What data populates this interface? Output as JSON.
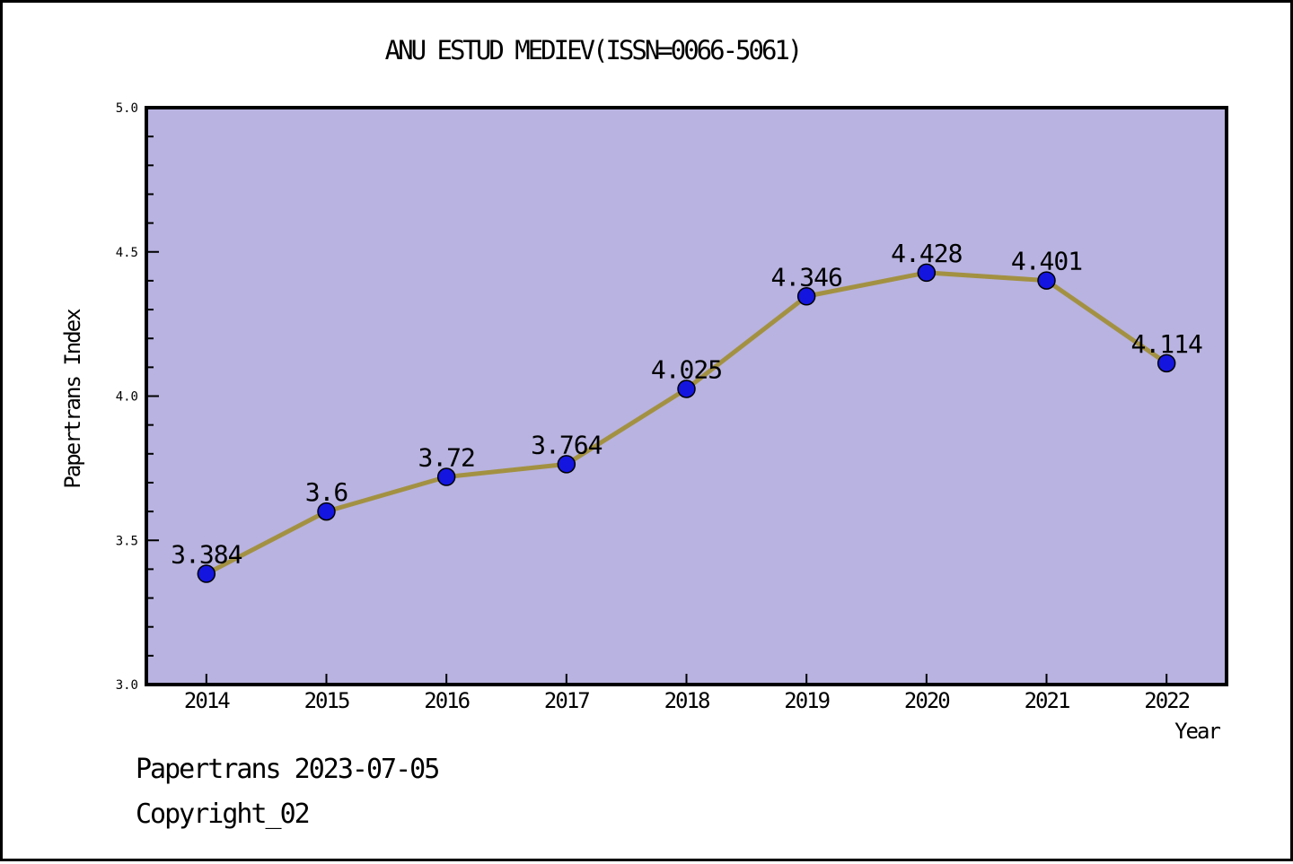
{
  "window": {
    "background": "#ffffff",
    "border_color": "#000000"
  },
  "chart_data": {
    "type": "line",
    "title": "ANU ESTUD MEDIEV(ISSN=0066-5061)",
    "xlabel": "Year",
    "ylabel": "Papertrans Index",
    "categories": [
      2014,
      2015,
      2016,
      2017,
      2018,
      2019,
      2020,
      2021,
      2022
    ],
    "xtick_labels": [
      "2014",
      "2015",
      "2016",
      "2017",
      "2018",
      "2019",
      "2020",
      "2021",
      "2022"
    ],
    "series": [
      {
        "name": "Papertrans Index",
        "values": [
          3.384,
          3.6,
          3.72,
          3.764,
          4.025,
          4.346,
          4.428,
          4.401,
          4.114
        ],
        "point_labels": [
          "3.384",
          "3.6",
          "3.72",
          "3.764",
          "4.025",
          "4.346",
          "4.428",
          "4.401",
          "4.114"
        ]
      }
    ],
    "ylim": [
      3.0,
      5.0
    ],
    "xlim": [
      2013.5,
      2022.5
    ],
    "ytick_labels": [
      "3.0",
      "3.5",
      "4.0",
      "4.5",
      "5.0"
    ],
    "ytick_major_step": 0.5,
    "ytick_minor_step": 0.1,
    "grid": false,
    "legend": "none",
    "colors": {
      "plot_background": "#b8b3e0",
      "line": "#a39142",
      "marker_fill": "#1515e0",
      "marker_edge": "#000000",
      "frame": "#000000",
      "text": "#000000"
    }
  },
  "footer": {
    "line1": "Papertrans 2023-07-05",
    "line2": "Copyright_02"
  }
}
